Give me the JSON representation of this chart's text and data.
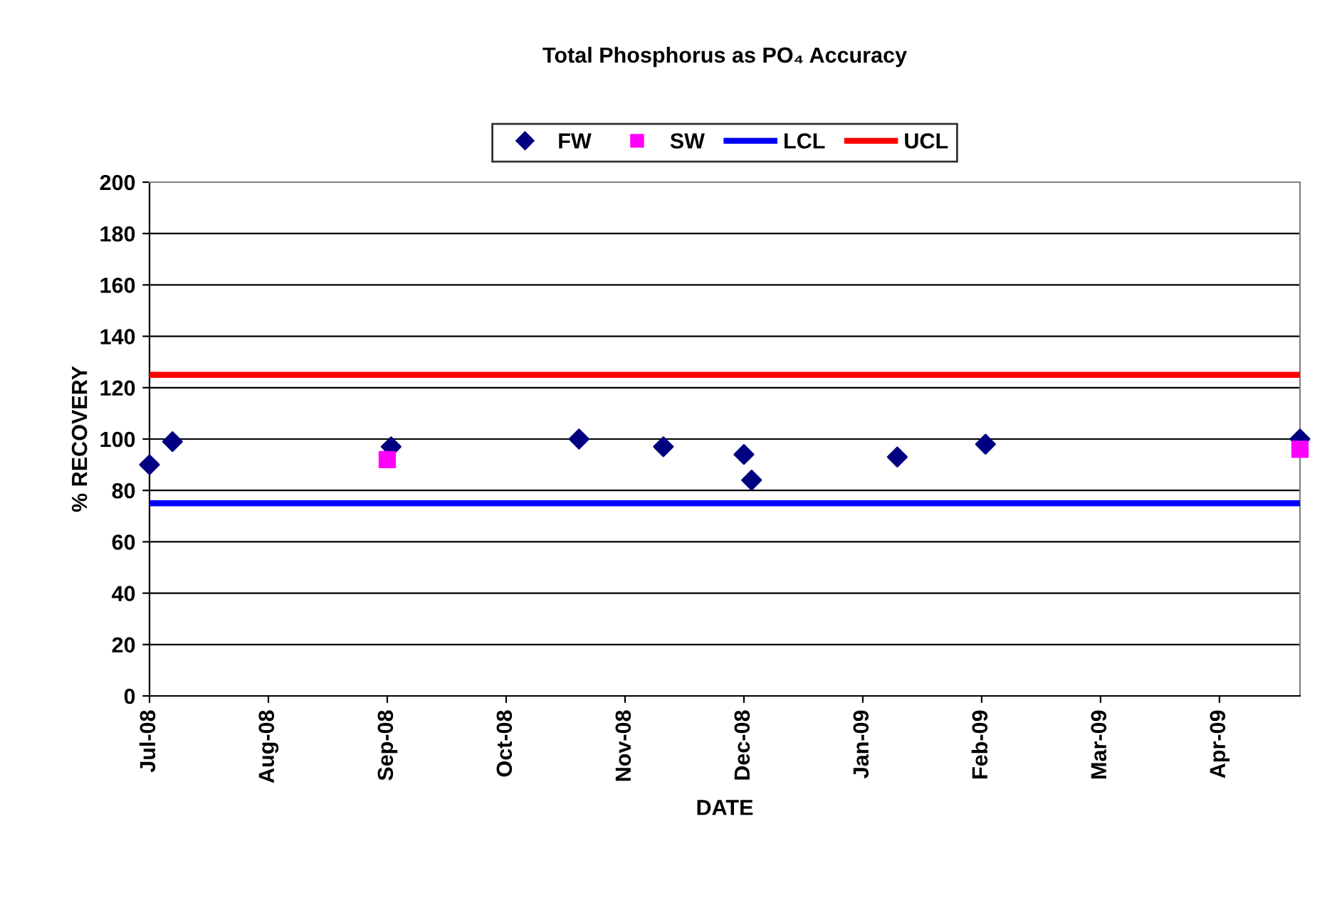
{
  "chart_data": {
    "type": "scatter",
    "title": "Total Phosphorus as PO₄ Accuracy",
    "xlabel": "DATE",
    "ylabel": "% RECOVERY",
    "xlim": [
      "2008-07-01",
      "2009-04-27"
    ],
    "xticks": [
      {
        "value": "2008-07-01",
        "label": "Jul-08"
      },
      {
        "value": "2008-08-01",
        "label": "Aug-08"
      },
      {
        "value": "2008-09-01",
        "label": "Sep-08"
      },
      {
        "value": "2008-10-02",
        "label": "Oct-08"
      },
      {
        "value": "2008-11-02",
        "label": "Nov-08"
      },
      {
        "value": "2008-12-03",
        "label": "Dec-08"
      },
      {
        "value": "2009-01-03",
        "label": "Jan-09"
      },
      {
        "value": "2009-02-03",
        "label": "Feb-09"
      },
      {
        "value": "2009-03-06",
        "label": "Mar-09"
      },
      {
        "value": "2009-04-06",
        "label": "Apr-09"
      }
    ],
    "ylim": [
      0,
      200
    ],
    "yticks": [
      0,
      20,
      40,
      60,
      80,
      100,
      120,
      140,
      160,
      180,
      200
    ],
    "grid": "y",
    "legend": "top",
    "series": [
      {
        "name": "FW",
        "marker": "diamond",
        "color": "#000080",
        "x": [
          "2008-07-01",
          "2008-07-07",
          "2008-09-02",
          "2008-10-21",
          "2008-11-12",
          "2008-12-03",
          "2008-12-05",
          "2009-01-12",
          "2009-02-04",
          "2009-04-27"
        ],
        "values": [
          90,
          99,
          97,
          100,
          97,
          94,
          84,
          93,
          98,
          100
        ]
      },
      {
        "name": "SW",
        "marker": "square",
        "color": "#ff00ff",
        "x": [
          "2008-09-01",
          "2009-04-27"
        ],
        "values": [
          92,
          96
        ]
      },
      {
        "name": "LCL",
        "type": "line",
        "marker": "none",
        "color": "#0000ff",
        "x": [
          "2008-07-01",
          "2009-04-27"
        ],
        "values": [
          75,
          75
        ]
      },
      {
        "name": "UCL",
        "type": "line",
        "marker": "none",
        "color": "#ff0000",
        "x": [
          "2008-07-01",
          "2009-04-27"
        ],
        "values": [
          125,
          125
        ]
      }
    ]
  }
}
